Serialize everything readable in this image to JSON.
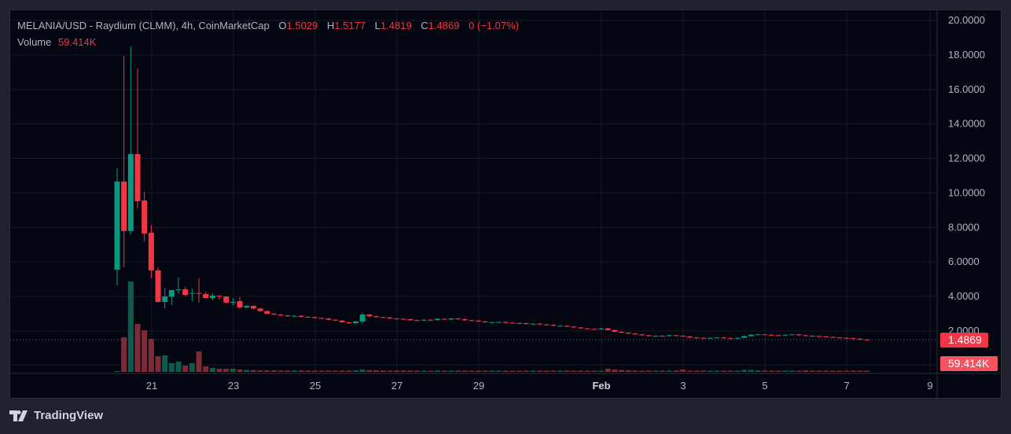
{
  "legend": {
    "symbol": "MELANIA/USD - Raydium (CLMM), 4h, CoinMarketCap",
    "open_label": "O",
    "open": "1.5029",
    "high_label": "H",
    "high": "1.5177",
    "low_label": "L",
    "low": "1.4819",
    "close_label": "C",
    "close": "1.4869",
    "change": "0 (−1.07%)",
    "volume_label": "Volume",
    "volume": "59.414K"
  },
  "brand": "TradingView",
  "colors": {
    "up": "#089981",
    "down": "#f23645",
    "up_volume": "#0e5a4f",
    "down_volume": "#7d2b37",
    "background": "#030610",
    "grid": "#161a25",
    "text": "#b2b5be"
  },
  "chart_data": {
    "type": "candlestick",
    "interval": "4h",
    "price_axis": {
      "range": [
        0,
        20
      ],
      "ticks": [
        "20.0000",
        "18.0000",
        "16.0000",
        "14.0000",
        "12.0000",
        "10.0000",
        "8.0000",
        "6.0000",
        "4.0000",
        "2.0000"
      ]
    },
    "time_axis": {
      "ticks": [
        "21",
        "23",
        "25",
        "27",
        "29",
        "Feb",
        "3",
        "5",
        "7",
        "9"
      ]
    },
    "last_price_label": "1.4869",
    "last_volume_label": "59.414K",
    "grid": true,
    "candles_ohlcv_k": [
      [
        5.55,
        11.43,
        4.64,
        10.66,
        40
      ],
      [
        10.66,
        17.95,
        5.69,
        7.79,
        1760
      ],
      [
        7.79,
        18.5,
        7.6,
        12.25,
        4600
      ],
      [
        12.25,
        17.2,
        9.1,
        9.52,
        2440
      ],
      [
        9.56,
        10.06,
        7.19,
        7.65,
        2120
      ],
      [
        7.69,
        8.15,
        5.05,
        5.51,
        1680
      ],
      [
        5.51,
        5.69,
        3.64,
        3.68,
        800
      ],
      [
        3.68,
        4.5,
        3.3,
        4.0,
        840
      ],
      [
        3.98,
        4.37,
        3.5,
        4.37,
        440
      ],
      [
        4.4,
        5.1,
        4.14,
        4.41,
        520
      ],
      [
        4.41,
        4.55,
        4.0,
        4.09,
        320
      ],
      [
        4.18,
        4.46,
        3.73,
        4.2,
        440
      ],
      [
        4.2,
        5.05,
        3.64,
        4.15,
        1040
      ],
      [
        4.14,
        4.27,
        3.9,
        3.91,
        280
      ],
      [
        3.91,
        4.2,
        3.78,
        4.05,
        200
      ],
      [
        4.05,
        4.05,
        3.82,
        4.0,
        160
      ],
      [
        4.0,
        3.95,
        3.6,
        3.64,
        160
      ],
      [
        3.64,
        3.9,
        3.5,
        3.68,
        160
      ],
      [
        3.73,
        3.95,
        3.3,
        3.36,
        120
      ]
    ],
    "later_closes": [
      3.45,
      3.3,
      3.15,
      3.0,
      2.95,
      2.9,
      2.85,
      2.88,
      2.82,
      2.8,
      2.75,
      2.72,
      2.65,
      2.6,
      2.5,
      2.45,
      2.55,
      2.95,
      2.85,
      2.8,
      2.78,
      2.72,
      2.7,
      2.68,
      2.62,
      2.6,
      2.65,
      2.63,
      2.7,
      2.66,
      2.72,
      2.68,
      2.62,
      2.6,
      2.55,
      2.5,
      2.5,
      2.52,
      2.48,
      2.46,
      2.45,
      2.4,
      2.42,
      2.38,
      2.35,
      2.3,
      2.3,
      2.25,
      2.2,
      2.15,
      2.12,
      2.1,
      2.15,
      2.05,
      1.95,
      1.9,
      1.85,
      1.8,
      1.75,
      1.7,
      1.72,
      1.7,
      1.75,
      1.72,
      1.68,
      1.62,
      1.6,
      1.58,
      1.6,
      1.62,
      1.58,
      1.55,
      1.6,
      1.7,
      1.78,
      1.8,
      1.78,
      1.75,
      1.74,
      1.78,
      1.8,
      1.75,
      1.72,
      1.7,
      1.68,
      1.65,
      1.62,
      1.6,
      1.58,
      1.55,
      1.5029,
      1.4869
    ],
    "later_volumes_k": [
      100,
      90,
      80,
      80,
      80,
      70,
      70,
      70,
      70,
      70,
      60,
      60,
      60,
      60,
      70,
      70,
      80,
      120,
      90,
      80,
      70,
      70,
      70,
      70,
      70,
      60,
      60,
      60,
      70,
      60,
      60,
      60,
      60,
      60,
      60,
      60,
      60,
      60,
      60,
      60,
      60,
      60,
      60,
      60,
      60,
      60,
      60,
      60,
      60,
      60,
      60,
      60,
      60,
      160,
      120,
      100,
      80,
      70,
      60,
      60,
      60,
      60,
      60,
      70,
      120,
      60,
      60,
      60,
      60,
      60,
      60,
      60,
      60,
      100,
      100,
      80,
      70,
      60,
      60,
      60,
      60,
      60,
      80,
      60,
      60,
      60,
      60,
      60,
      60,
      60,
      60,
      59.414
    ]
  }
}
